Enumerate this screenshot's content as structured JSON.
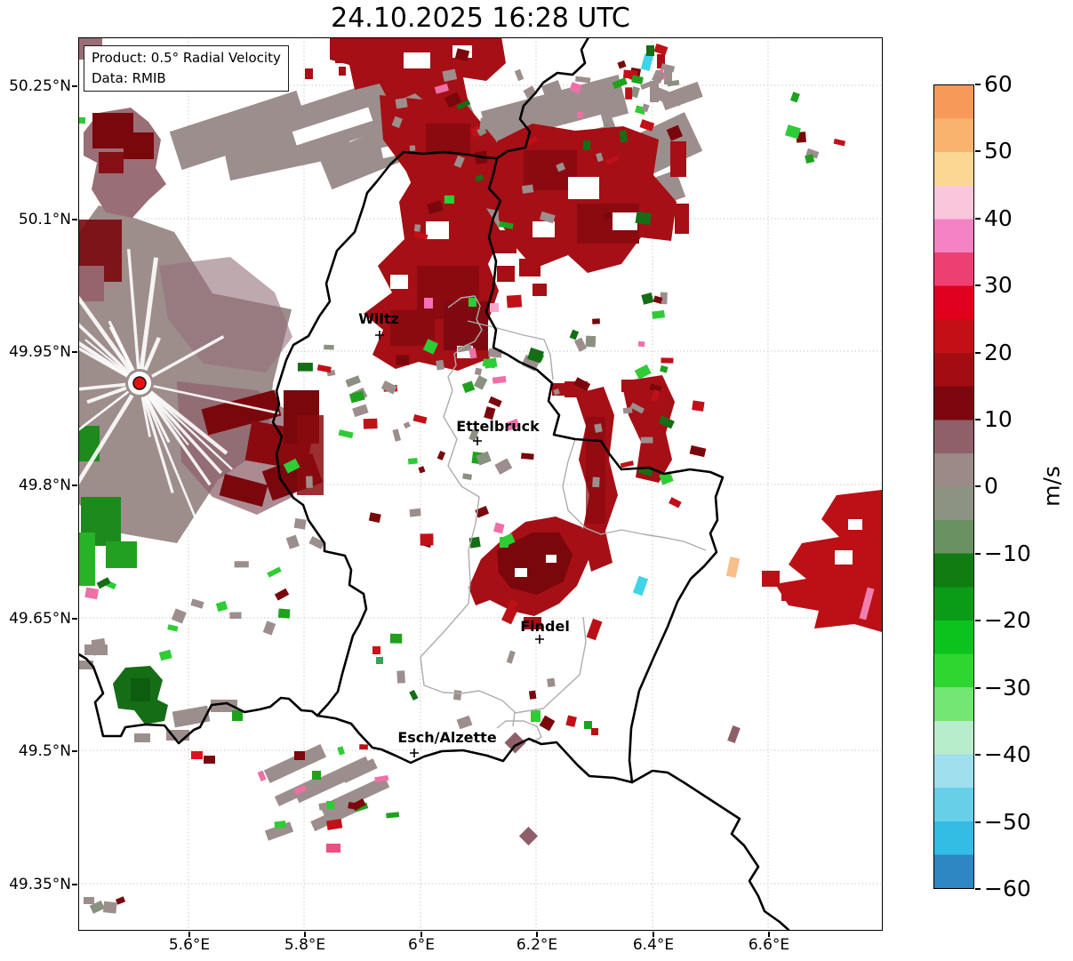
{
  "title": "24.10.2025 16:28 UTC",
  "info_box": {
    "product_line": "Product: 0.5° Radial Velocity",
    "data_line": "Data: RMIB"
  },
  "axes": {
    "x_ticks": [
      "5.6°E",
      "5.8°E",
      "6°E",
      "6.2°E",
      "6.4°E",
      "6.6°E"
    ],
    "y_ticks": [
      "50.25°N",
      "50.1°N",
      "49.95°N",
      "49.8°N",
      "49.65°N",
      "49.5°N",
      "49.35°N"
    ]
  },
  "colorbar": {
    "label": "m/s",
    "ticks": [
      "60",
      "50",
      "40",
      "30",
      "20",
      "10",
      "0",
      "−10",
      "−20",
      "−30",
      "−40",
      "−50",
      "−60"
    ],
    "colors": [
      "#f79a59",
      "#fab36f",
      "#fcd793",
      "#f9c6dc",
      "#f583c4",
      "#ee3f72",
      "#e0001d",
      "#c40f16",
      "#a30d12",
      "#7c070e",
      "#90606a",
      "#9b8a87",
      "#8c9383",
      "#6a9162",
      "#107c12",
      "#0b9c17",
      "#0cc21c",
      "#2fd62f",
      "#73e673",
      "#b8edcb",
      "#9fdfee",
      "#67d0e8",
      "#33bce4",
      "#2e86c3"
    ]
  },
  "cities": [
    "Wiltz",
    "Ettelbruck",
    "Findel",
    "Esch/Alzette"
  ],
  "chart_data": {
    "type": "heatmap",
    "title": "24.10.2025 16:28 UTC",
    "product": "0.5° Radial Velocity",
    "data_source": "RMIB",
    "x_axis": {
      "ticks": [
        "5.6°E",
        "5.8°E",
        "6°E",
        "6.2°E",
        "6.4°E",
        "6.6°E"
      ],
      "range_deg_east": [
        5.41,
        6.8
      ]
    },
    "y_axis": {
      "ticks": [
        "50.25°N",
        "50.1°N",
        "49.95°N",
        "49.8°N",
        "49.65°N",
        "49.5°N",
        "49.35°N"
      ],
      "range_deg_north": [
        49.3,
        50.31
      ]
    },
    "colorbar": {
      "label": "m/s",
      "min": -60,
      "max": 60,
      "tick_step": 10
    },
    "grid": true,
    "radar_site": {
      "lon_approx": 5.51,
      "lat_approx": 49.92,
      "marker": "red dot"
    },
    "cities": [
      {
        "name": "Wiltz",
        "lon_approx": 5.93,
        "lat_approx": 49.97
      },
      {
        "name": "Ettelbruck",
        "lon_approx": 6.1,
        "lat_approx": 49.85
      },
      {
        "name": "Findel",
        "lon_approx": 6.21,
        "lat_approx": 49.63
      },
      {
        "name": "Esch/Alzette",
        "lon_approx": 5.99,
        "lat_approx": 49.5
      }
    ],
    "echo_regions": [
      {
        "area": "large band north and northeast of Wiltz crossing the border",
        "velocity_m_s": "15 to 25"
      },
      {
        "area": "ground-clutter disc around radar site at ~5.51°E 49.92°N",
        "velocity_m_s": "-5 to 10"
      },
      {
        "area": "gray stippled band across far north ~50.15-50.25°N",
        "velocity_m_s": "0 to 5"
      },
      {
        "area": "two vertical streaks east of Ettelbruck ~6.25-6.35°E",
        "velocity_m_s": "15 to 25"
      },
      {
        "area": "elongated blob southeast of Ettelbruck ~6.2°E 49.72°N",
        "velocity_m_s": "10 to 20"
      },
      {
        "area": "patch at eastern image edge ~6.75°E 49.70°N",
        "velocity_m_s": "15 to 25"
      },
      {
        "area": "small patch southwest ~5.49°E 49.57°N",
        "velocity_m_s": "-15 to -10"
      },
      {
        "area": "speckled gray/green noise near southern border around Esch/Alzette",
        "velocity_m_s": "-5 to 5"
      }
    ]
  }
}
